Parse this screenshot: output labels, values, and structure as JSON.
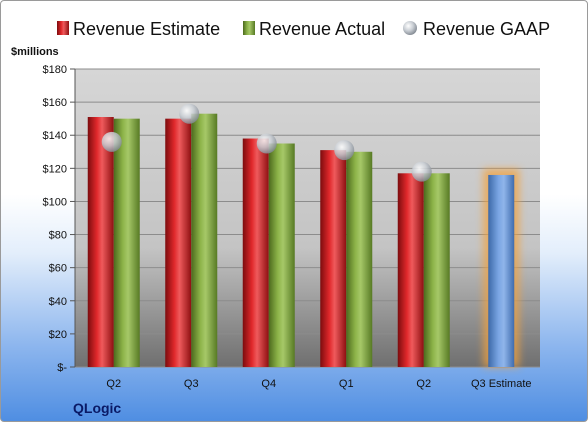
{
  "company": "QLogic",
  "colors": {
    "estimate": "#c8181b",
    "actual": "#7ea33c",
    "gaap": "#b9bec5",
    "forecast": "#5f90d6",
    "forecast_glow": "#f3a23e"
  },
  "chart_data": {
    "type": "bar",
    "title": "",
    "xlabel": "",
    "ylabel": "$millions",
    "ylim": [
      0,
      180
    ],
    "y_ticks": [
      "$-",
      "$20",
      "$40",
      "$60",
      "$80",
      "$100",
      "$120",
      "$140",
      "$160",
      "$180"
    ],
    "categories": [
      "Q2",
      "Q3",
      "Q4",
      "Q1",
      "Q2",
      "Q3 Estimate"
    ],
    "series": [
      {
        "name": "Revenue Estimate",
        "type": "bar",
        "values": [
          151,
          150,
          138,
          131,
          117,
          116
        ]
      },
      {
        "name": "Revenue Actual",
        "type": "bar",
        "values": [
          150,
          153,
          135,
          130,
          117,
          null
        ]
      },
      {
        "name": "Revenue GAAP",
        "type": "scatter",
        "values": [
          136,
          153,
          135,
          131,
          118,
          null
        ]
      }
    ],
    "grid": true,
    "legend": "top"
  }
}
